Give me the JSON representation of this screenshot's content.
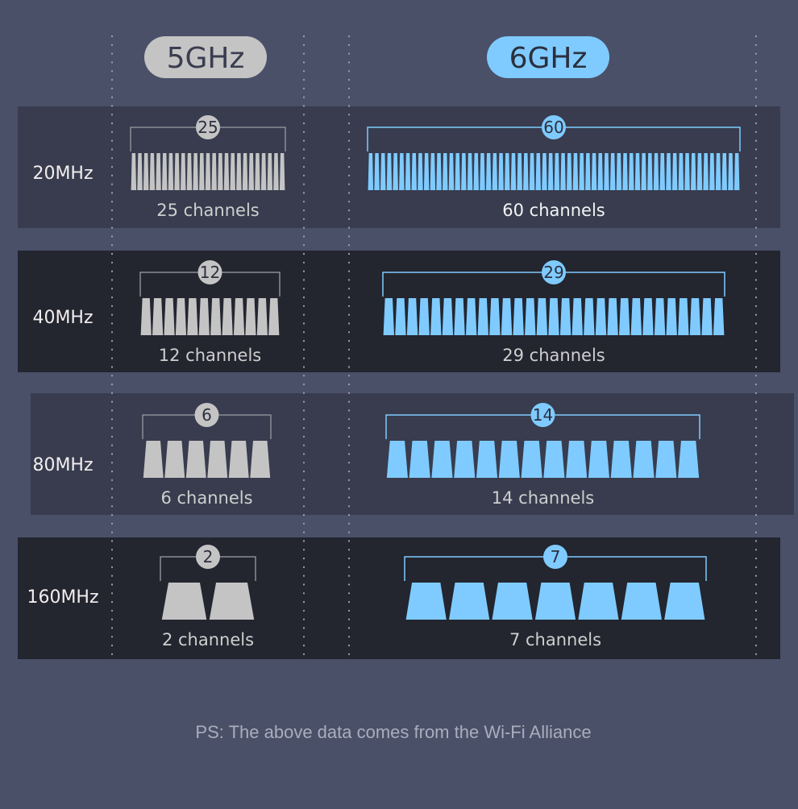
{
  "header": {
    "band_5ghz": "5GHz",
    "band_6ghz": "6GHz"
  },
  "colors": {
    "background": "#4a5068",
    "row_light": "#383c4e",
    "row_dark": "#23252f",
    "band_5ghz": "#c4c4c4",
    "band_6ghz": "#7fcbff"
  },
  "rows": [
    {
      "width": "20MHz",
      "ghz5": {
        "count": 25,
        "badge": "25",
        "label": "25 channels"
      },
      "ghz6": {
        "count": 60,
        "badge": "60",
        "label": "60 channels"
      }
    },
    {
      "width": "40MHz",
      "ghz5": {
        "count": 12,
        "badge": "12",
        "label": "12 channels"
      },
      "ghz6": {
        "count": 29,
        "badge": "29",
        "label": "29 channels"
      }
    },
    {
      "width": "80MHz",
      "ghz5": {
        "count": 6,
        "badge": "6",
        "label": "6 channels"
      },
      "ghz6": {
        "count": 14,
        "badge": "14",
        "label": "14 channels"
      }
    },
    {
      "width": "160MHz",
      "ghz5": {
        "count": 2,
        "badge": "2",
        "label": "2 channels"
      },
      "ghz6": {
        "count": 7,
        "badge": "7",
        "label": "7 channels"
      }
    }
  ],
  "footnote": "PS: The above data comes from the Wi-Fi Alliance"
}
